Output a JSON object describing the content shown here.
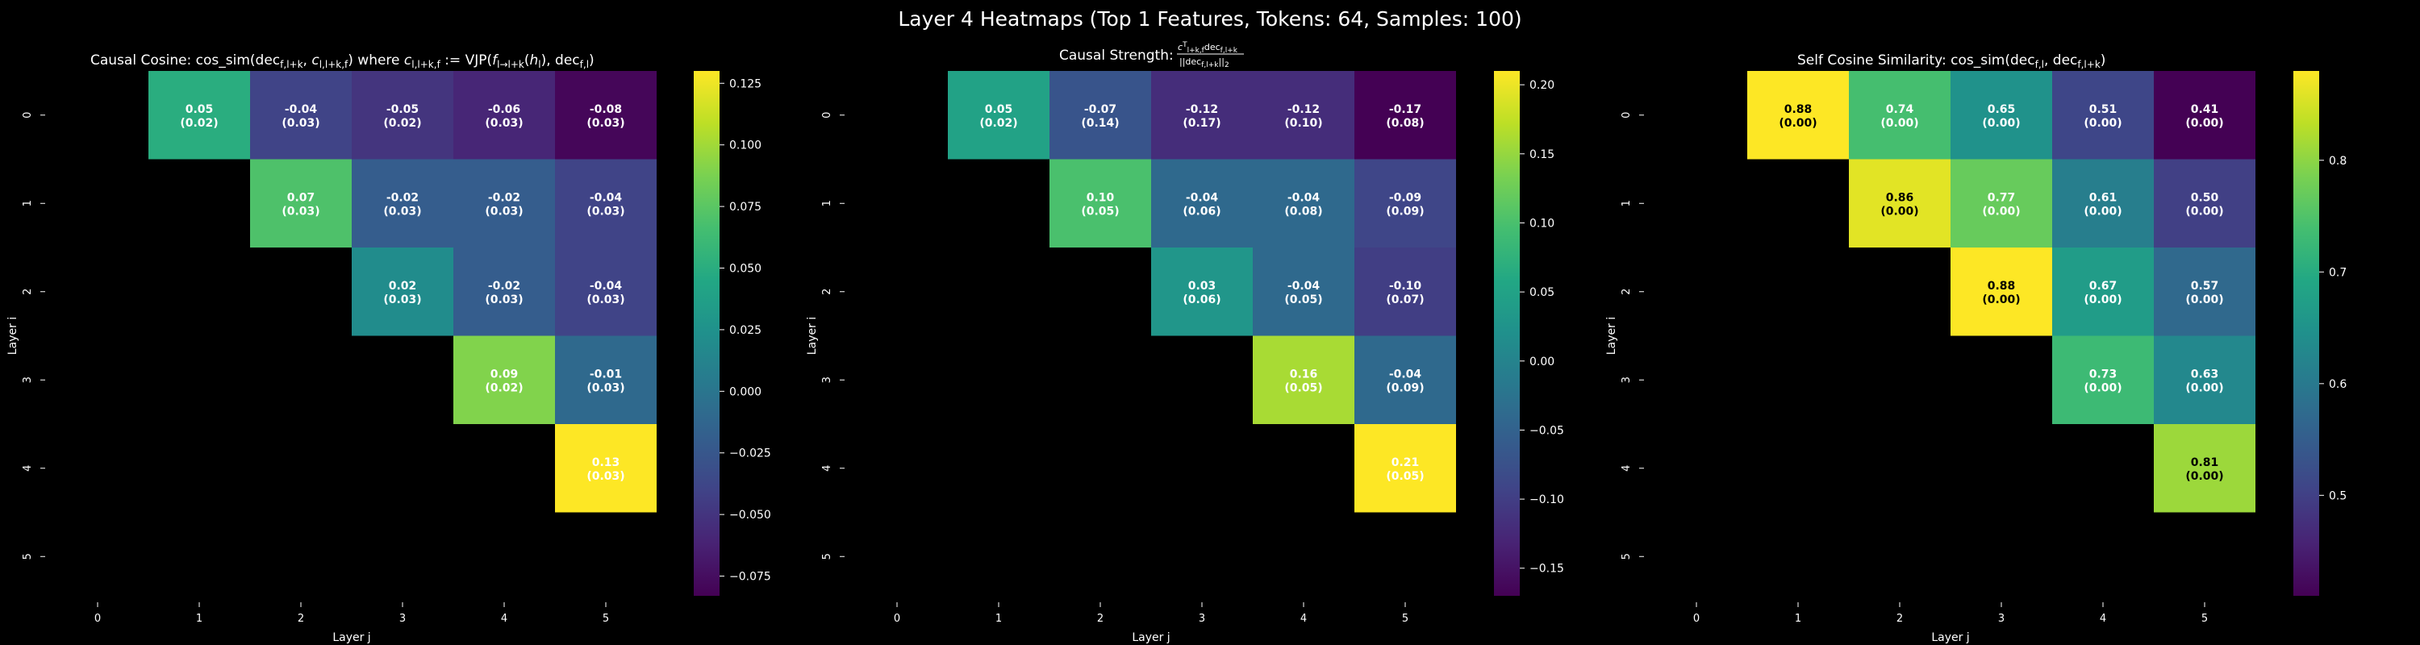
{
  "figure": {
    "title": "Layer 4 Heatmaps (Top 1 Features, Tokens: 64, Samples: 100)"
  },
  "chart_data": [
    {
      "type": "heatmap",
      "title": "Causal Cosine: cos_sim(dec_{f,l+k}, c_{l,l+k,f}) where c_{l,l+k,f} := VJP(f_{l→l+k}(h_l), dec_{f,l})",
      "xlabel": "Layer j",
      "ylabel": "Layer i",
      "x_ticks": [
        "0",
        "1",
        "2",
        "3",
        "4",
        "5"
      ],
      "y_ticks": [
        "0",
        "1",
        "2",
        "3",
        "4",
        "5"
      ],
      "colorscale": "viridis",
      "vmin": -0.083,
      "vmax": 0.13,
      "cb_ticks": [
        0.125,
        0.1,
        0.075,
        0.05,
        0.025,
        0.0,
        -0.025,
        -0.05,
        -0.075
      ],
      "cb_tick_labels": [
        "0.125",
        "0.100",
        "0.075",
        "0.050",
        "0.025",
        "0.000",
        "−0.025",
        "−0.050",
        "−0.075"
      ],
      "values": [
        [
          null,
          0.05,
          -0.04,
          -0.05,
          -0.06,
          -0.08
        ],
        [
          null,
          null,
          0.07,
          -0.02,
          -0.02,
          -0.04
        ],
        [
          null,
          null,
          null,
          0.02,
          -0.02,
          -0.04
        ],
        [
          null,
          null,
          null,
          null,
          0.09,
          -0.01
        ],
        [
          null,
          null,
          null,
          null,
          null,
          0.13
        ],
        [
          null,
          null,
          null,
          null,
          null,
          null
        ]
      ],
      "stds": [
        [
          null,
          0.02,
          0.03,
          0.02,
          0.03,
          0.03
        ],
        [
          null,
          null,
          0.03,
          0.03,
          0.03,
          0.03
        ],
        [
          null,
          null,
          null,
          0.03,
          0.03,
          0.03
        ],
        [
          null,
          null,
          null,
          null,
          0.02,
          0.03
        ],
        [
          null,
          null,
          null,
          null,
          null,
          0.03
        ],
        [
          null,
          null,
          null,
          null,
          null,
          null
        ]
      ]
    },
    {
      "type": "heatmap",
      "title": "Causal Strength: c^T_{l+k,f} dec_{f,l+k} / ||dec_{f,l+k}||_2",
      "xlabel": "Layer j",
      "ylabel": "Layer i",
      "x_ticks": [
        "0",
        "1",
        "2",
        "3",
        "4",
        "5"
      ],
      "y_ticks": [
        "0",
        "1",
        "2",
        "3",
        "4",
        "5"
      ],
      "colorscale": "viridis",
      "vmin": -0.17,
      "vmax": 0.21,
      "cb_ticks": [
        0.2,
        0.15,
        0.1,
        0.05,
        0.0,
        -0.05,
        -0.1,
        -0.15
      ],
      "cb_tick_labels": [
        "0.20",
        "0.15",
        "0.10",
        "0.05",
        "0.00",
        "−0.05",
        "−0.10",
        "−0.15"
      ],
      "values": [
        [
          null,
          0.05,
          -0.07,
          -0.12,
          -0.12,
          -0.17
        ],
        [
          null,
          null,
          0.1,
          -0.04,
          -0.04,
          -0.09
        ],
        [
          null,
          null,
          null,
          0.03,
          -0.04,
          -0.1
        ],
        [
          null,
          null,
          null,
          null,
          0.16,
          -0.04
        ],
        [
          null,
          null,
          null,
          null,
          null,
          0.21
        ],
        [
          null,
          null,
          null,
          null,
          null,
          null
        ]
      ],
      "stds": [
        [
          null,
          0.02,
          0.14,
          0.17,
          0.1,
          0.08
        ],
        [
          null,
          null,
          0.05,
          0.06,
          0.08,
          0.09
        ],
        [
          null,
          null,
          null,
          0.06,
          0.05,
          0.07
        ],
        [
          null,
          null,
          null,
          null,
          0.05,
          0.09
        ],
        [
          null,
          null,
          null,
          null,
          null,
          0.05
        ],
        [
          null,
          null,
          null,
          null,
          null,
          null
        ]
      ]
    },
    {
      "type": "heatmap",
      "title": "Self Cosine Similarity: cos_sim(dec_{f,l}, dec_{f,l+k})",
      "xlabel": "Layer j",
      "ylabel": "Layer i",
      "x_ticks": [
        "0",
        "1",
        "2",
        "3",
        "4",
        "5"
      ],
      "y_ticks": [
        "0",
        "1",
        "2",
        "3",
        "4",
        "5"
      ],
      "colorscale": "viridis",
      "vmin": 0.41,
      "vmax": 0.88,
      "cb_ticks": [
        0.8,
        0.7,
        0.6,
        0.5
      ],
      "cb_tick_labels": [
        "0.8",
        "0.7",
        "0.6",
        "0.5"
      ],
      "values": [
        [
          null,
          0.88,
          0.74,
          0.65,
          0.51,
          0.41
        ],
        [
          null,
          null,
          0.86,
          0.77,
          0.61,
          0.5
        ],
        [
          null,
          null,
          null,
          0.88,
          0.67,
          0.57
        ],
        [
          null,
          null,
          null,
          null,
          0.73,
          0.63
        ],
        [
          null,
          null,
          null,
          null,
          null,
          0.81
        ],
        [
          null,
          null,
          null,
          null,
          null,
          null
        ]
      ],
      "stds": [
        [
          null,
          0.0,
          0.0,
          0.0,
          0.0,
          0.0
        ],
        [
          null,
          null,
          0.0,
          0.0,
          0.0,
          0.0
        ],
        [
          null,
          null,
          null,
          0.0,
          0.0,
          0.0
        ],
        [
          null,
          null,
          null,
          null,
          0.0,
          0.0
        ],
        [
          null,
          null,
          null,
          null,
          null,
          0.0
        ],
        [
          null,
          null,
          null,
          null,
          null,
          null
        ]
      ]
    }
  ]
}
